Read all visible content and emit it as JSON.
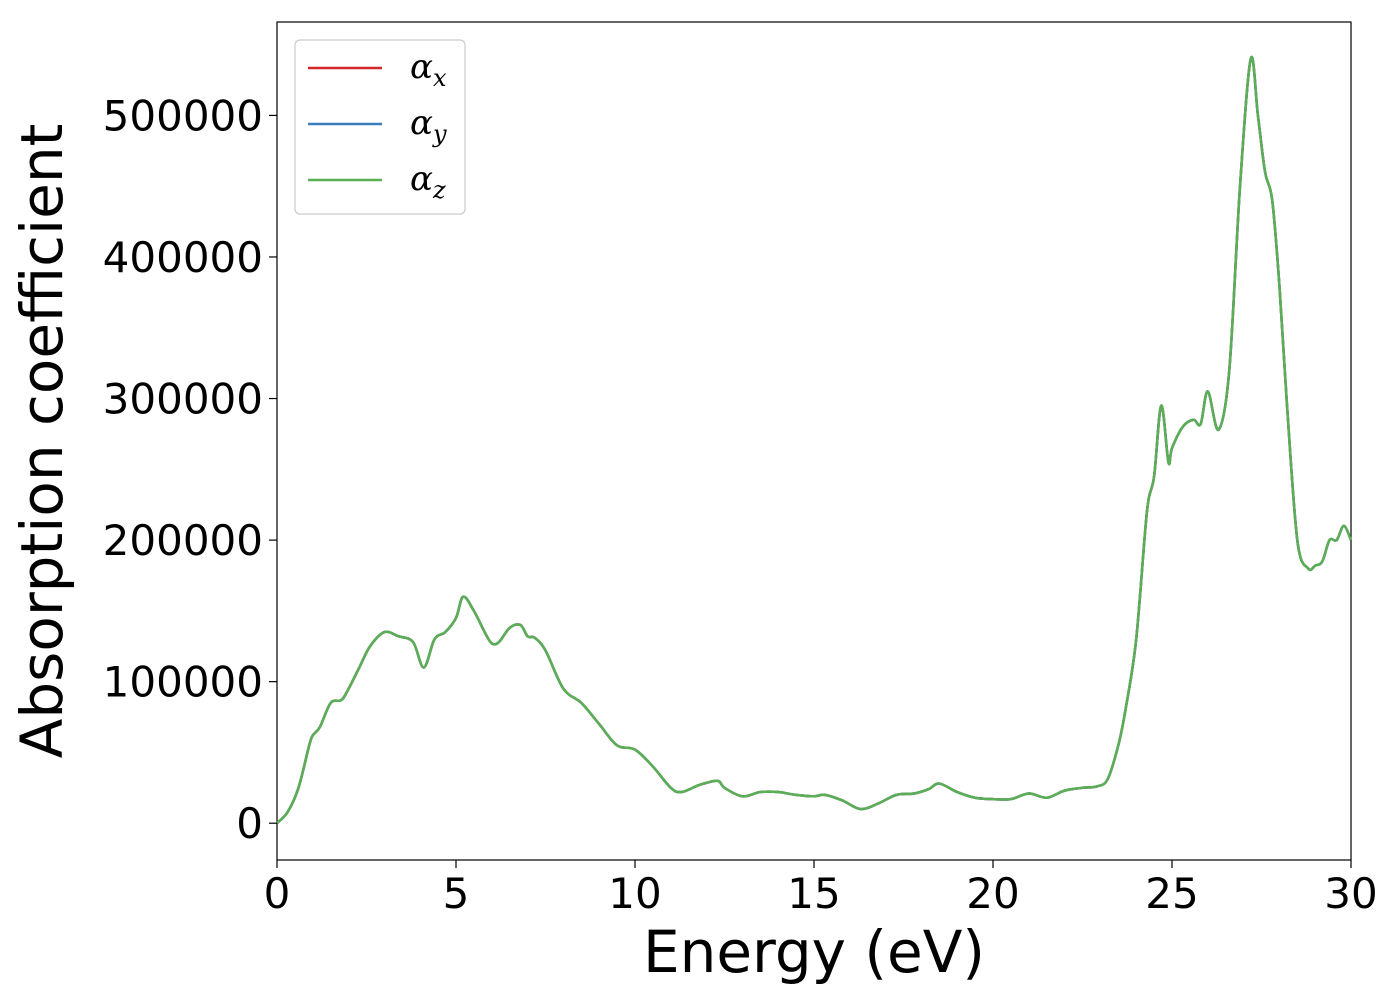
{
  "chart_data": {
    "type": "line",
    "xlabel": "Energy (eV)",
    "ylabel": "Absorption coefficient",
    "xlim": [
      0,
      30
    ],
    "ylim": [
      -26000,
      566000
    ],
    "xticks": [
      0,
      5,
      10,
      15,
      20,
      25,
      30
    ],
    "yticks": [
      0,
      100000,
      200000,
      300000,
      400000,
      500000
    ],
    "grid": false,
    "legend_position": "top-left",
    "series": [
      {
        "name": "α",
        "subscript": "x",
        "color": "#d62728",
        "linewidth": 2.5
      },
      {
        "name": "α",
        "subscript": "y",
        "color": "#3a7dbb",
        "linewidth": 2.5
      },
      {
        "name": "α",
        "subscript": "z",
        "color": "#5aaf55",
        "linewidth": 2.5
      }
    ],
    "x": [
      0,
      0.3,
      0.6,
      0.9,
      1.0,
      1.2,
      1.5,
      1.8,
      2.0,
      2.3,
      2.6,
      3.0,
      3.4,
      3.8,
      4.1,
      4.4,
      4.7,
      5.0,
      5.2,
      5.5,
      5.8,
      6.0,
      6.2,
      6.5,
      6.8,
      7.0,
      7.2,
      7.5,
      8.0,
      8.5,
      9.0,
      9.5,
      10.0,
      10.5,
      11.0,
      11.3,
      11.8,
      12.3,
      12.5,
      13.0,
      13.5,
      14.0,
      14.5,
      15.0,
      15.3,
      15.8,
      16.3,
      16.8,
      17.3,
      17.8,
      18.2,
      18.5,
      19.0,
      19.5,
      20.0,
      20.5,
      21.0,
      21.5,
      22.0,
      22.5,
      22.9,
      23.2,
      23.5,
      23.7,
      24.0,
      24.3,
      24.5,
      24.7,
      24.9,
      25.0,
      25.3,
      25.6,
      25.8,
      26.0,
      26.3,
      26.6,
      26.9,
      27.2,
      27.4,
      27.6,
      27.8,
      28.0,
      28.2,
      28.5,
      28.8,
      29.0,
      29.2,
      29.4,
      29.6,
      29.8,
      30.0
    ],
    "y": [
      0,
      8000,
      25000,
      55000,
      62000,
      68000,
      85000,
      87000,
      95000,
      110000,
      125000,
      135000,
      132000,
      128000,
      110000,
      130000,
      135000,
      145000,
      160000,
      150000,
      135000,
      127000,
      128000,
      138000,
      140000,
      132000,
      131000,
      122000,
      95000,
      85000,
      70000,
      55000,
      52000,
      40000,
      25000,
      22000,
      27000,
      30000,
      25000,
      19000,
      22000,
      22000,
      20000,
      19000,
      20000,
      16000,
      10000,
      14000,
      20000,
      21000,
      24000,
      28000,
      22000,
      18000,
      17000,
      17000,
      21000,
      18000,
      23000,
      25000,
      26000,
      31000,
      55000,
      80000,
      130000,
      220000,
      245000,
      295000,
      255000,
      265000,
      280000,
      285000,
      282000,
      305000,
      278000,
      320000,
      450000,
      540000,
      500000,
      460000,
      440000,
      380000,
      300000,
      200000,
      180000,
      182000,
      185000,
      200000,
      200000,
      210000,
      200000
    ]
  }
}
